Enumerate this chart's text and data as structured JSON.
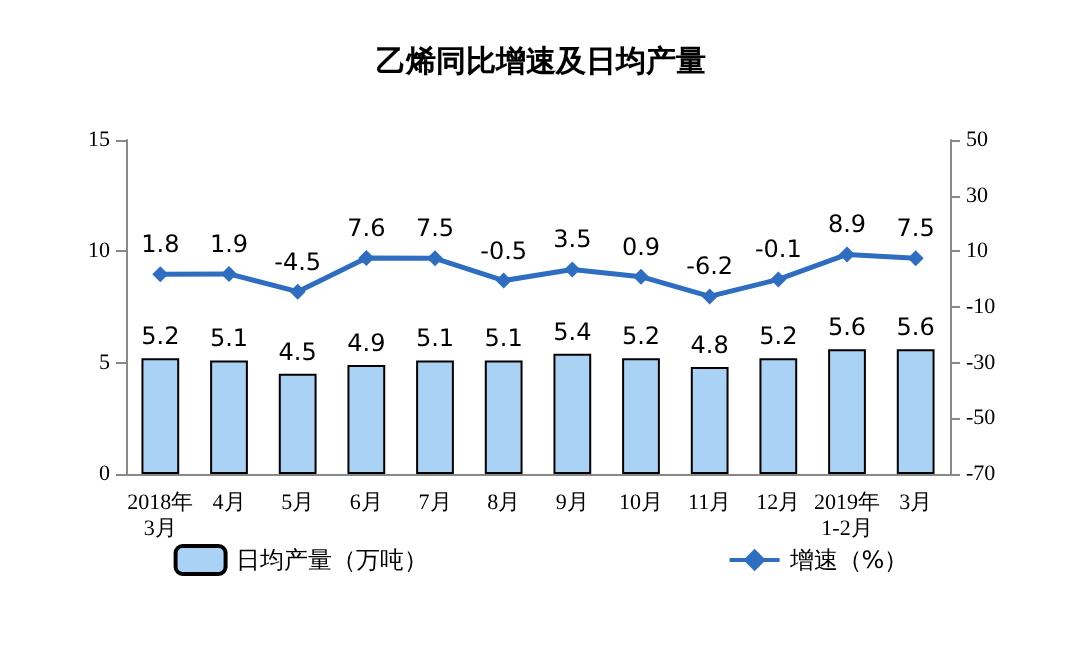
{
  "chart_data": {
    "type": "bar",
    "title": "乙烯同比增速及日均产量",
    "categories": [
      "2018年\n3月",
      "4月",
      "5月",
      "6月",
      "7月",
      "8月",
      "9月",
      "10月",
      "11月",
      "12月",
      "2019年\n1-2月",
      "3月"
    ],
    "series": [
      {
        "name": "日均产量（万吨）",
        "color": "#a9d2f5",
        "values": [
          5.2,
          5.1,
          4.5,
          4.9,
          5.1,
          5.1,
          5.4,
          5.2,
          4.8,
          5.2,
          5.6,
          5.6
        ]
      },
      {
        "name": "增速（%）",
        "type": "line",
        "axis": "y2",
        "color": "#2e6dbf",
        "marker": "diamond",
        "values": [
          1.8,
          1.9,
          -4.5,
          7.6,
          7.5,
          -0.5,
          3.5,
          0.9,
          -6.2,
          -0.1,
          8.9,
          7.5
        ]
      }
    ],
    "ylim": [
      0,
      15
    ],
    "yticks": [
      0,
      5,
      10,
      15
    ],
    "y2lim": [
      -70,
      50
    ],
    "y2ticks": [
      -70,
      -50,
      -30,
      -10,
      10,
      30,
      50
    ],
    "data_labels": true,
    "legend": "bottom",
    "grid": false
  }
}
